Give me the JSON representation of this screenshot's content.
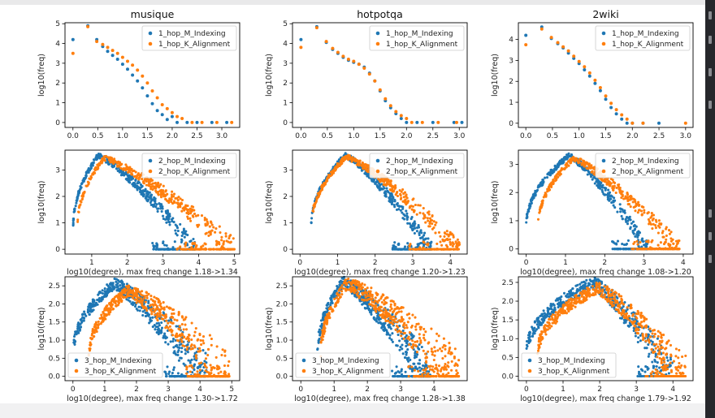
{
  "colors": {
    "indexing": "#1f77b4",
    "alignment": "#ff7f0e"
  },
  "chart_data": [
    {
      "type": "scatter",
      "row": 1,
      "col": 1,
      "title": "musique",
      "xlabel": "",
      "ylabel": "log10(freq)",
      "xlim": [
        -0.16,
        3.36
      ],
      "ylim": [
        -0.25,
        5.05
      ],
      "xticks": [
        "0.0",
        "0.5",
        "1.0",
        "1.5",
        "2.0",
        "2.5",
        "3.0"
      ],
      "yticks": [
        "0",
        "1",
        "2",
        "3",
        "4",
        "5"
      ],
      "legend": "top-right",
      "series": [
        {
          "name": "1_hop_M_Indexing",
          "color": "#1f77b4",
          "points": [
            [
              0,
              4.2
            ],
            [
              0.3,
              4.9
            ],
            [
              0.48,
              4.2
            ],
            [
              0.6,
              3.85
            ],
            [
              0.7,
              3.6
            ],
            [
              0.8,
              3.4
            ],
            [
              0.9,
              3.2
            ],
            [
              1.0,
              2.95
            ],
            [
              1.1,
              2.7
            ],
            [
              1.2,
              2.4
            ],
            [
              1.3,
              2.1
            ],
            [
              1.4,
              1.75
            ],
            [
              1.5,
              1.35
            ],
            [
              1.6,
              0.95
            ],
            [
              1.7,
              0.6
            ],
            [
              1.8,
              0.4
            ],
            [
              1.9,
              0.15
            ],
            [
              2.0,
              0.3
            ],
            [
              2.1,
              0
            ],
            [
              2.3,
              0
            ],
            [
              2.5,
              0
            ],
            [
              2.8,
              0
            ],
            [
              3.1,
              0
            ]
          ]
        },
        {
          "name": "1_hop_K_Alignment",
          "color": "#ff7f0e",
          "points": [
            [
              0,
              3.5
            ],
            [
              0.3,
              4.85
            ],
            [
              0.48,
              4.1
            ],
            [
              0.6,
              3.95
            ],
            [
              0.7,
              3.8
            ],
            [
              0.8,
              3.65
            ],
            [
              0.9,
              3.5
            ],
            [
              1.0,
              3.3
            ],
            [
              1.1,
              3.1
            ],
            [
              1.2,
              2.9
            ],
            [
              1.3,
              2.65
            ],
            [
              1.4,
              2.35
            ],
            [
              1.5,
              2.0
            ],
            [
              1.6,
              1.6
            ],
            [
              1.7,
              1.25
            ],
            [
              1.8,
              0.9
            ],
            [
              1.9,
              0.7
            ],
            [
              2.0,
              0.5
            ],
            [
              2.1,
              0.3
            ],
            [
              2.2,
              0.2
            ],
            [
              2.4,
              0
            ],
            [
              2.6,
              0
            ],
            [
              2.9,
              0
            ],
            [
              3.2,
              0
            ]
          ]
        }
      ]
    },
    {
      "type": "scatter",
      "row": 1,
      "col": 2,
      "title": "hotpotqa",
      "xlabel": "",
      "ylabel": "log10(freq)",
      "xlim": [
        -0.16,
        3.15
      ],
      "ylim": [
        -0.25,
        5.05
      ],
      "xticks": [
        "0.0",
        "0.5",
        "1.0",
        "1.5",
        "2.0",
        "2.5",
        "3.0"
      ],
      "yticks": [
        "0",
        "1",
        "2",
        "3",
        "4",
        "5"
      ],
      "legend": "top-right",
      "series": [
        {
          "name": "1_hop_M_Indexing",
          "color": "#1f77b4",
          "points": [
            [
              0,
              4.2
            ],
            [
              0.3,
              4.85
            ],
            [
              0.48,
              4.05
            ],
            [
              0.6,
              3.7
            ],
            [
              0.7,
              3.5
            ],
            [
              0.8,
              3.3
            ],
            [
              0.9,
              3.15
            ],
            [
              1.0,
              3.05
            ],
            [
              1.1,
              2.95
            ],
            [
              1.2,
              2.8
            ],
            [
              1.3,
              2.5
            ],
            [
              1.4,
              2.1
            ],
            [
              1.5,
              1.6
            ],
            [
              1.6,
              1.1
            ],
            [
              1.7,
              0.75
            ],
            [
              1.8,
              0.45
            ],
            [
              1.9,
              0.2
            ],
            [
              2.0,
              0
            ],
            [
              2.2,
              0
            ],
            [
              2.5,
              0
            ],
            [
              2.9,
              0
            ],
            [
              3.05,
              0
            ]
          ]
        },
        {
          "name": "1_hop_K_Alignment",
          "color": "#ff7f0e",
          "points": [
            [
              0,
              3.8
            ],
            [
              0.3,
              4.8
            ],
            [
              0.48,
              4.1
            ],
            [
              0.6,
              3.75
            ],
            [
              0.7,
              3.55
            ],
            [
              0.8,
              3.35
            ],
            [
              0.9,
              3.2
            ],
            [
              1.0,
              3.1
            ],
            [
              1.1,
              2.95
            ],
            [
              1.2,
              2.75
            ],
            [
              1.3,
              2.45
            ],
            [
              1.4,
              2.1
            ],
            [
              1.5,
              1.65
            ],
            [
              1.6,
              1.2
            ],
            [
              1.7,
              0.85
            ],
            [
              1.8,
              0.55
            ],
            [
              1.9,
              0.35
            ],
            [
              2.0,
              0.2
            ],
            [
              2.1,
              0
            ],
            [
              2.3,
              0
            ],
            [
              2.6,
              0
            ],
            [
              2.95,
              0
            ]
          ]
        }
      ]
    },
    {
      "type": "scatter",
      "row": 1,
      "col": 3,
      "title": "2wiki",
      "xlabel": "",
      "ylabel": "log10(freq)",
      "xlim": [
        -0.14,
        3.14
      ],
      "ylim": [
        -0.2,
        4.8
      ],
      "xticks": [
        "0.0",
        "0.5",
        "1.0",
        "1.5",
        "2.0",
        "2.5",
        "3.0"
      ],
      "yticks": [
        "0",
        "1",
        "2",
        "3",
        "4"
      ],
      "legend": "top-right",
      "series": [
        {
          "name": "1_hop_M_Indexing",
          "color": "#1f77b4",
          "points": [
            [
              0,
              4.2
            ],
            [
              0.3,
              4.6
            ],
            [
              0.48,
              4.05
            ],
            [
              0.6,
              3.8
            ],
            [
              0.7,
              3.6
            ],
            [
              0.8,
              3.35
            ],
            [
              0.9,
              3.1
            ],
            [
              1.0,
              2.85
            ],
            [
              1.1,
              2.55
            ],
            [
              1.2,
              2.25
            ],
            [
              1.3,
              1.9
            ],
            [
              1.4,
              1.55
            ],
            [
              1.5,
              1.15
            ],
            [
              1.6,
              0.75
            ],
            [
              1.7,
              0.45
            ],
            [
              1.8,
              0.2
            ],
            [
              1.9,
              0
            ],
            [
              2.0,
              0
            ],
            [
              2.2,
              0
            ],
            [
              2.5,
              0
            ]
          ]
        },
        {
          "name": "1_hop_K_Alignment",
          "color": "#ff7f0e",
          "points": [
            [
              0,
              3.75
            ],
            [
              0.3,
              4.5
            ],
            [
              0.48,
              4.1
            ],
            [
              0.6,
              3.85
            ],
            [
              0.7,
              3.65
            ],
            [
              0.8,
              3.45
            ],
            [
              0.9,
              3.2
            ],
            [
              1.0,
              2.95
            ],
            [
              1.1,
              2.7
            ],
            [
              1.2,
              2.4
            ],
            [
              1.3,
              2.05
            ],
            [
              1.4,
              1.7
            ],
            [
              1.5,
              1.3
            ],
            [
              1.6,
              0.95
            ],
            [
              1.7,
              0.65
            ],
            [
              1.8,
              0.4
            ],
            [
              1.9,
              0.2
            ],
            [
              2.0,
              0
            ],
            [
              2.2,
              0
            ],
            [
              3.0,
              0
            ]
          ]
        }
      ]
    },
    {
      "type": "scatter",
      "row": 2,
      "col": 1,
      "title": "",
      "xlabel": "log10(degree), max freq change 1.18->1.34",
      "ylabel": "log10(freq)",
      "xlim": [
        0.25,
        5.15
      ],
      "ylim": [
        -0.18,
        3.75
      ],
      "xticks": [
        "1",
        "2",
        "3",
        "4",
        "5"
      ],
      "yticks": [
        "0",
        "1",
        "2",
        "3"
      ],
      "legend": "top-right",
      "peak": [
        1.18,
        3.55
      ],
      "peak_alt": [
        1.34,
        3.45
      ],
      "x0": 0.48,
      "x0_alt": 0.6,
      "xmax": 3.9,
      "xmax_alt": 5.0,
      "series": [
        {
          "name": "2_hop_M_Indexing",
          "color": "#1f77b4",
          "points": []
        },
        {
          "name": "2_hop_K_Alignment",
          "color": "#ff7f0e",
          "points": []
        }
      ]
    },
    {
      "type": "scatter",
      "row": 2,
      "col": 2,
      "title": "",
      "xlabel": "log10(degree), max freq change 1.20->1.23",
      "ylabel": "log10(freq)",
      "xlim": [
        -0.2,
        4.45
      ],
      "ylim": [
        -0.18,
        3.75
      ],
      "xticks": [
        "0",
        "1",
        "2",
        "3",
        "4"
      ],
      "yticks": [
        "0",
        "1",
        "2",
        "3"
      ],
      "legend": "top-right",
      "peak": [
        1.2,
        3.55
      ],
      "peak_alt": [
        1.23,
        3.5
      ],
      "x0": 0.3,
      "x0_alt": 0.3,
      "xmax": 3.5,
      "xmax_alt": 4.25,
      "series": [
        {
          "name": "2_hop_M_Indexing",
          "color": "#1f77b4",
          "points": []
        },
        {
          "name": "2_hop_K_Alignment",
          "color": "#ff7f0e",
          "points": []
        }
      ]
    },
    {
      "type": "scatter",
      "row": 2,
      "col": 3,
      "title": "",
      "xlabel": "log10(degree), max freq change 1.08->1.20",
      "ylabel": "log10(freq)",
      "xlim": [
        -0.2,
        4.25
      ],
      "ylim": [
        -0.18,
        3.5
      ],
      "xticks": [
        "0",
        "1",
        "2",
        "3",
        "4"
      ],
      "yticks": [
        "0",
        "1",
        "2",
        "3"
      ],
      "legend": "top-right",
      "peak": [
        1.08,
        3.3
      ],
      "peak_alt": [
        1.2,
        3.2
      ],
      "x0": 0.0,
      "x0_alt": 0.3,
      "xmax": 3.1,
      "xmax_alt": 3.9,
      "series": [
        {
          "name": "2_hop_M_Indexing",
          "color": "#1f77b4",
          "points": []
        },
        {
          "name": "2_hop_K_Alignment",
          "color": "#ff7f0e",
          "points": []
        }
      ]
    },
    {
      "type": "scatter",
      "row": 3,
      "col": 1,
      "title": "",
      "xlabel": "log10(degree), max freq change 1.30->1.72",
      "ylabel": "log10(freq)",
      "xlim": [
        -0.25,
        5.25
      ],
      "ylim": [
        -0.12,
        2.75
      ],
      "xticks": [
        "0",
        "1",
        "2",
        "3",
        "4",
        "5"
      ],
      "yticks": [
        "0.0",
        "0.5",
        "1.0",
        "1.5",
        "2.0",
        "2.5"
      ],
      "legend": "bottom-left",
      "peak": [
        1.3,
        2.55
      ],
      "peak_alt": [
        1.72,
        2.35
      ],
      "x0": 0.0,
      "x0_alt": 0.5,
      "xmax": 4.2,
      "xmax_alt": 4.95,
      "series": [
        {
          "name": "3_hop_M_Indexing",
          "color": "#1f77b4",
          "points": []
        },
        {
          "name": "3_hop_K_Alignment",
          "color": "#ff7f0e",
          "points": []
        }
      ]
    },
    {
      "type": "scatter",
      "row": 3,
      "col": 2,
      "title": "",
      "xlabel": "log10(degree), max freq change 1.28->1.38",
      "ylabel": "log10(freq)",
      "xlim": [
        -0.25,
        5.0
      ],
      "ylim": [
        -0.12,
        2.75
      ],
      "xticks": [
        "0",
        "1",
        "2",
        "3",
        "4"
      ],
      "yticks": [
        "0.0",
        "0.5",
        "1.0",
        "1.5",
        "2.0",
        "2.5"
      ],
      "legend": "bottom-left",
      "peak": [
        1.28,
        2.6
      ],
      "peak_alt": [
        1.38,
        2.55
      ],
      "x0": 0.5,
      "x0_alt": 0.6,
      "xmax": 3.9,
      "xmax_alt": 4.75,
      "series": [
        {
          "name": "3_hop_M_Indexing",
          "color": "#1f77b4",
          "points": []
        },
        {
          "name": "3_hop_K_Alignment",
          "color": "#ff7f0e",
          "points": []
        }
      ]
    },
    {
      "type": "scatter",
      "row": 3,
      "col": 3,
      "title": "",
      "xlabel": "log10(degree), max freq change 1.79->1.92",
      "ylabel": "log10(freq)",
      "xlim": [
        -0.22,
        4.55
      ],
      "ylim": [
        -0.12,
        2.65
      ],
      "xticks": [
        "0",
        "1",
        "2",
        "3",
        "4"
      ],
      "yticks": [
        "0.0",
        "0.5",
        "1.0",
        "1.5",
        "2.0",
        "2.5"
      ],
      "legend": "bottom-left",
      "peak": [
        1.79,
        2.5
      ],
      "peak_alt": [
        1.92,
        2.35
      ],
      "x0": 0.0,
      "x0_alt": 0.3,
      "xmax": 4.0,
      "xmax_alt": 4.35,
      "series": [
        {
          "name": "3_hop_M_Indexing",
          "color": "#1f77b4",
          "points": []
        },
        {
          "name": "3_hop_K_Alignment",
          "color": "#ff7f0e",
          "points": []
        }
      ]
    }
  ]
}
